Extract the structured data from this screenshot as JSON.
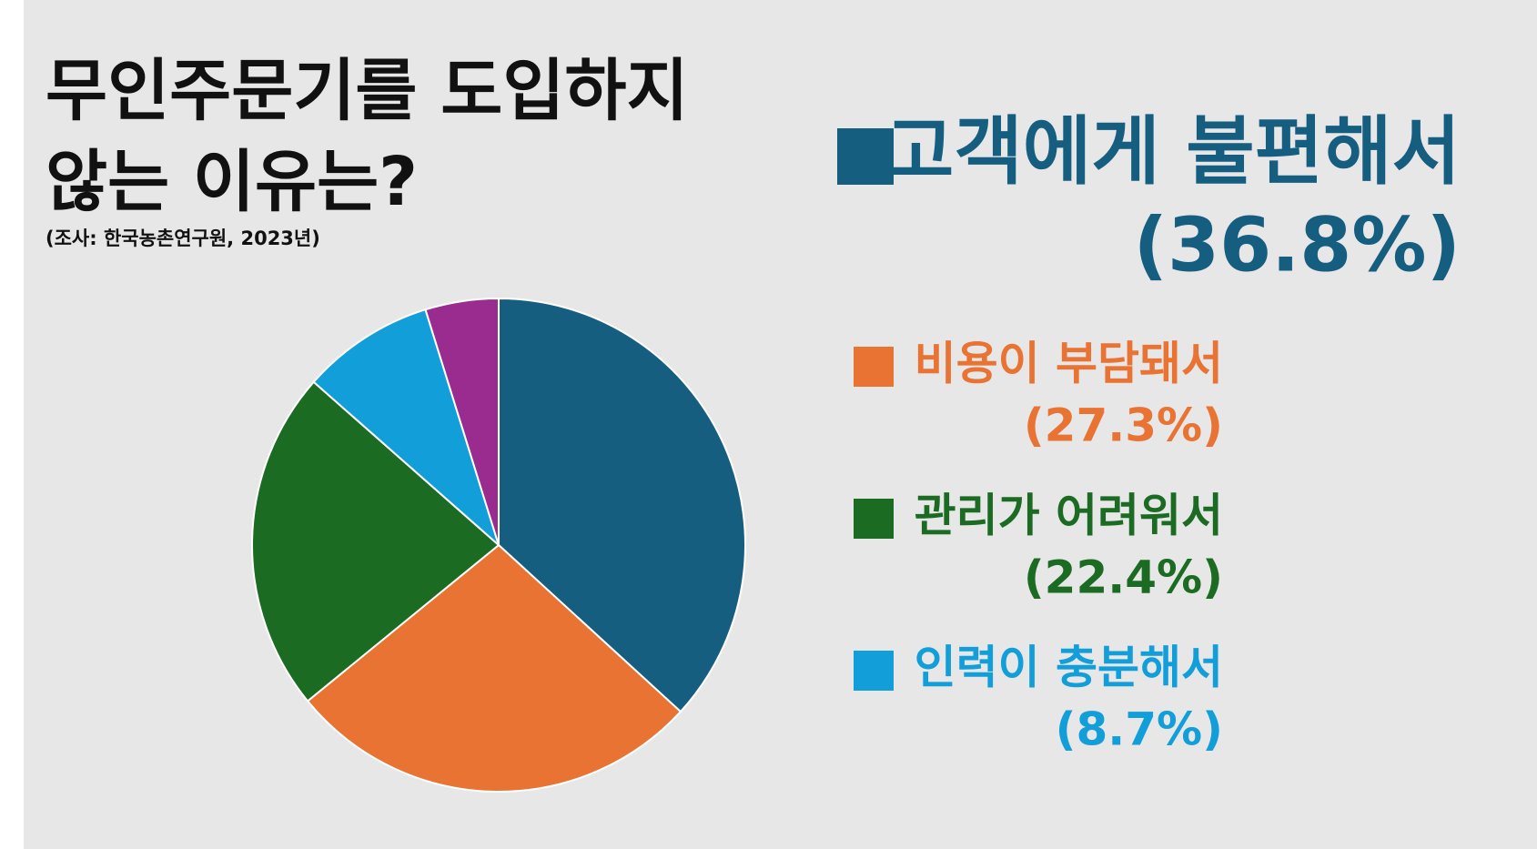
{
  "chart_data": {
    "type": "pie",
    "title": "무인주문기를 도입하지 않는 이유는?",
    "subtitle": "(조사: 한국농촌연구원, 2023년)",
    "categories": [
      "고객에게 불편해서",
      "비용이 부담돼서",
      "관리가 어려워서",
      "인력이 충분해서",
      null
    ],
    "values": [
      36.8,
      27.3,
      22.4,
      8.7,
      4.8
    ],
    "value_labels": [
      "(36.8%)",
      "(27.3%)",
      "(22.4%)",
      "(8.7%)",
      null
    ],
    "colors": [
      "#165e80",
      "#e97332",
      "#1b6b23",
      "#129ed8",
      "#9a2b8f"
    ]
  }
}
